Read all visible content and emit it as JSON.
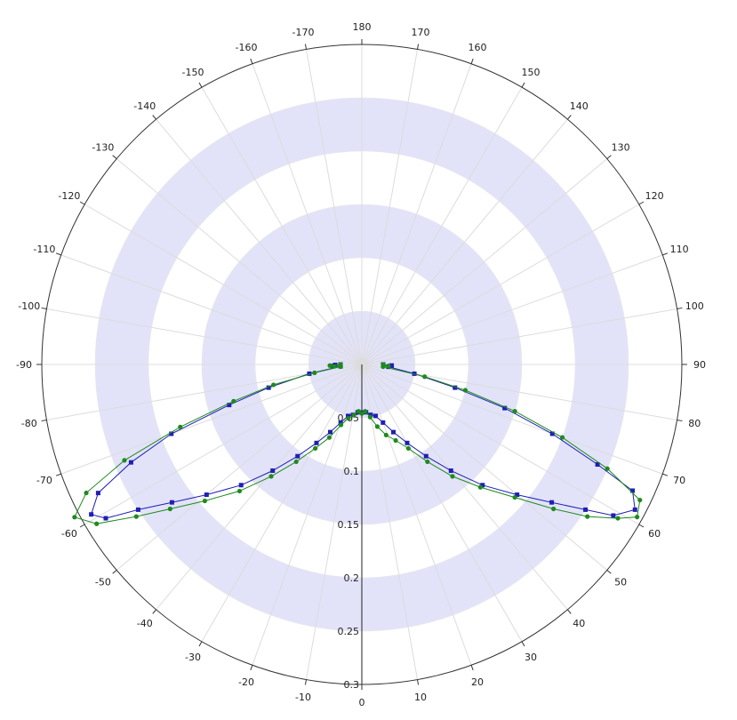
{
  "chart_data": {
    "type": "polar-line",
    "angle_tick_labels": [
      "0",
      "10",
      "20",
      "30",
      "40",
      "50",
      "60",
      "70",
      "80",
      "90",
      "100",
      "110",
      "120",
      "130",
      "140",
      "150",
      "160",
      "170",
      "180",
      "-170",
      "-160",
      "-150",
      "-140",
      "-130",
      "-120",
      "-110",
      "-100",
      "-90",
      "-80",
      "-70",
      "-60",
      "-50",
      "-40",
      "-30",
      "-20",
      "-10"
    ],
    "radial_tick_labels": [
      "0.05",
      "0.1",
      "0.15",
      "0.2",
      "0.25",
      "0.3"
    ],
    "radial_range": [
      0,
      0.3
    ],
    "angle_zero_direction": "bottom",
    "angle_grid_step_deg": 10,
    "band_color": "#e2e3f8",
    "series": [
      {
        "color": "#1f1fb3",
        "marker": "square",
        "points": [
          [
            -90,
            0.02
          ],
          [
            -89,
            0.025
          ],
          [
            -87,
            0.027
          ],
          [
            -85,
            0.02
          ],
          [
            -80,
            0.05
          ],
          [
            -76,
            0.09
          ],
          [
            -73,
            0.13
          ],
          [
            -70,
            0.19
          ],
          [
            -67,
            0.235
          ],
          [
            -64,
            0.275
          ],
          [
            -61,
            0.29
          ],
          [
            -59,
            0.28
          ],
          [
            -57,
            0.25
          ],
          [
            -54,
            0.22
          ],
          [
            -50,
            0.19
          ],
          [
            -45,
            0.16
          ],
          [
            -40,
            0.13
          ],
          [
            -35,
            0.105
          ],
          [
            -30,
            0.085
          ],
          [
            -25,
            0.07
          ],
          [
            -20,
            0.058
          ],
          [
            -15,
            0.05
          ],
          [
            -10,
            0.048
          ],
          [
            -5,
            0.045
          ],
          [
            0,
            0.045
          ],
          [
            5,
            0.045
          ],
          [
            10,
            0.048
          ],
          [
            15,
            0.05
          ],
          [
            20,
            0.058
          ],
          [
            25,
            0.07
          ],
          [
            30,
            0.085
          ],
          [
            35,
            0.105
          ],
          [
            40,
            0.13
          ],
          [
            45,
            0.16
          ],
          [
            50,
            0.19
          ],
          [
            54,
            0.22
          ],
          [
            57,
            0.25
          ],
          [
            59,
            0.275
          ],
          [
            62,
            0.29
          ],
          [
            65,
            0.28
          ],
          [
            67,
            0.24
          ],
          [
            70,
            0.19
          ],
          [
            73,
            0.14
          ],
          [
            76,
            0.09
          ],
          [
            80,
            0.05
          ],
          [
            85,
            0.025
          ],
          [
            88,
            0.028
          ],
          [
            90,
            0.02
          ]
        ]
      },
      {
        "color": "#1e8a1e",
        "marker": "circle",
        "points": [
          [
            -90,
            0.02
          ],
          [
            -88,
            0.03
          ],
          [
            -86,
            0.026
          ],
          [
            -84,
            0.02
          ],
          [
            -80,
            0.045
          ],
          [
            -77,
            0.085
          ],
          [
            -74,
            0.125
          ],
          [
            -71,
            0.18
          ],
          [
            -68,
            0.24
          ],
          [
            -65,
            0.285
          ],
          [
            -62,
            0.305
          ],
          [
            -59,
            0.29
          ],
          [
            -56,
            0.255
          ],
          [
            -53,
            0.225
          ],
          [
            -49,
            0.195
          ],
          [
            -44,
            0.165
          ],
          [
            -39,
            0.135
          ],
          [
            -34,
            0.11
          ],
          [
            -29,
            0.09
          ],
          [
            -24,
            0.075
          ],
          [
            -19,
            0.06
          ],
          [
            -14,
            0.052
          ],
          [
            -9,
            0.048
          ],
          [
            -4,
            0.044
          ],
          [
            0,
            0.046
          ],
          [
            4,
            0.044
          ],
          [
            9,
            0.05
          ],
          [
            14,
            0.06
          ],
          [
            19,
            0.07
          ],
          [
            24,
            0.078
          ],
          [
            29,
            0.09
          ],
          [
            34,
            0.11
          ],
          [
            39,
            0.135
          ],
          [
            44,
            0.16
          ],
          [
            49,
            0.19
          ],
          [
            53,
            0.225
          ],
          [
            56,
            0.255
          ],
          [
            59,
            0.28
          ],
          [
            61,
            0.295
          ],
          [
            64,
            0.29
          ],
          [
            67,
            0.25
          ],
          [
            70,
            0.2
          ],
          [
            73,
            0.15
          ],
          [
            76,
            0.1
          ],
          [
            79,
            0.06
          ],
          [
            84,
            0.02
          ],
          [
            87,
            0.025
          ],
          [
            90,
            0.02
          ]
        ]
      }
    ]
  }
}
